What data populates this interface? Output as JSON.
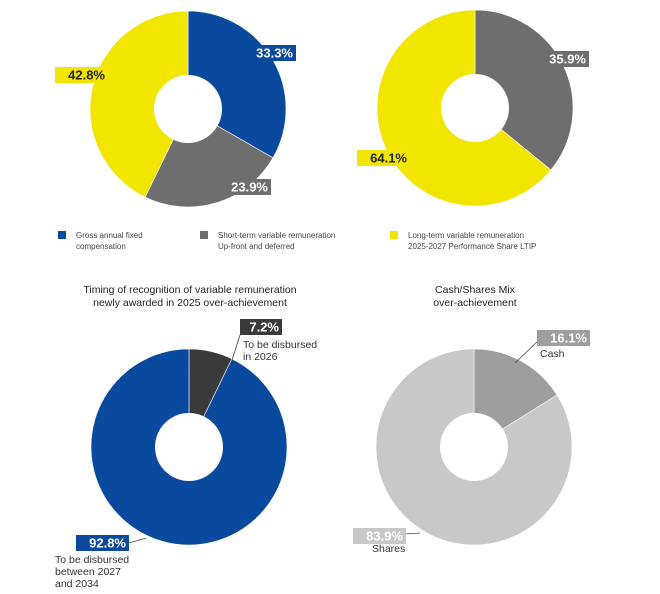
{
  "colors": {
    "blue": "#0a4a9e",
    "darkgrey": "#6e6e6e",
    "yellow": "#f2e500",
    "charcoal": "#3a3a3a",
    "lightgrey": "#c8c8c8",
    "midgrey": "#9e9e9e"
  },
  "legend": [
    {
      "color": "blue",
      "line1": "Gross annual fixed",
      "line2": "compensation"
    },
    {
      "color": "darkgrey",
      "line1": "Short-term variable remuneration",
      "line2": "Up-front and deferred"
    },
    {
      "color": "yellow",
      "line1": "Long-term variable remuneration",
      "line2": "2025-2027 Performance Share LTIP"
    }
  ],
  "chart_data": [
    {
      "type": "pie",
      "title": "",
      "slices": [
        {
          "label": "33.3%",
          "value": 33.3,
          "color": "blue"
        },
        {
          "label": "23.9%",
          "value": 23.9,
          "color": "darkgrey"
        },
        {
          "label": "42.8%",
          "value": 42.8,
          "color": "yellow"
        }
      ]
    },
    {
      "type": "pie",
      "title": "",
      "slices": [
        {
          "label": "35.9%",
          "value": 35.9,
          "color": "darkgrey"
        },
        {
          "label": "64.1%",
          "value": 64.1,
          "color": "yellow"
        }
      ]
    },
    {
      "type": "pie",
      "title": [
        "Timing of recognition of variable remuneration",
        "newly awarded in 2025 over-achievement"
      ],
      "slices": [
        {
          "label": "7.2%",
          "value": 7.2,
          "color": "charcoal",
          "caption": [
            "To be disbursed",
            "in 2026"
          ]
        },
        {
          "label": "92.8%",
          "value": 92.8,
          "color": "blue",
          "caption": [
            "To be disbursed",
            "between 2027",
            "and 2034"
          ]
        }
      ]
    },
    {
      "type": "pie",
      "title": [
        "Cash/Shares Mix",
        "over-achievement"
      ],
      "slices": [
        {
          "label": "16.1%",
          "value": 16.1,
          "color": "midgrey",
          "caption": [
            "Cash"
          ]
        },
        {
          "label": "83.9%",
          "value": 83.9,
          "color": "lightgrey",
          "caption": [
            "Shares"
          ]
        }
      ]
    }
  ]
}
